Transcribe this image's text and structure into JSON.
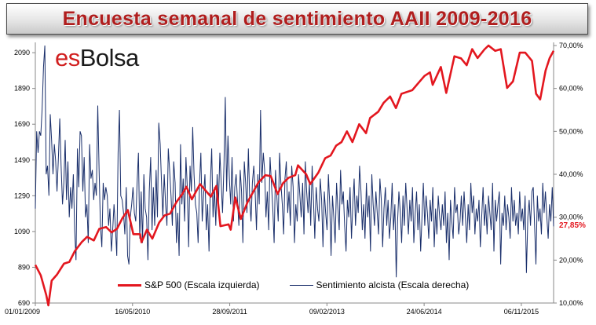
{
  "title": "Encuesta  semanal  de sentimiento AAII 2009-2016",
  "logo": {
    "prefix": "es",
    "suffix": "Bolsa"
  },
  "last_value_label": "27,85%",
  "chart_data": {
    "type": "line",
    "title": "Encuesta  semanal  de sentimiento AAII 2009-2016",
    "x_tick_labels": [
      "01/01/2009",
      "16/05/2010",
      "28/09/2011",
      "09/02/2013",
      "24/06/2014",
      "06/11/2015"
    ],
    "x_range": [
      "2009-01-01",
      "2016-04-20"
    ],
    "y_left": {
      "ticks": [
        "690",
        "890",
        "1090",
        "1290",
        "1490",
        "1690",
        "1890",
        "2090"
      ],
      "range": [
        690,
        2130
      ]
    },
    "y_right": {
      "ticks": [
        "10,00%",
        "20,00%",
        "30,00%",
        "40,00%",
        "50,00%",
        "60,00%",
        "70,00%"
      ],
      "range": [
        10,
        70
      ]
    },
    "grid": false,
    "legend": "bottom",
    "colors": {
      "sp500": "#e3171f",
      "sentiment": "#1a2f6b"
    },
    "series": [
      {
        "name": "S&P 500 (Escala izquierda)",
        "axis": "left",
        "x": [
          "2009-01-01",
          "2009-01-29",
          "2009-02-26",
          "2009-03-09",
          "2009-03-26",
          "2009-04-23",
          "2009-05-28",
          "2009-06-25",
          "2009-07-23",
          "2009-08-27",
          "2009-09-24",
          "2009-10-29",
          "2009-11-26",
          "2009-12-31",
          "2010-01-28",
          "2010-02-25",
          "2010-03-25",
          "2010-04-22",
          "2010-05-20",
          "2010-06-24",
          "2010-07-01",
          "2010-07-29",
          "2010-08-26",
          "2010-09-30",
          "2010-10-28",
          "2010-11-25",
          "2010-12-30",
          "2011-01-27",
          "2011-02-17",
          "2011-03-17",
          "2011-04-28",
          "2011-05-26",
          "2011-06-23",
          "2011-07-21",
          "2011-08-11",
          "2011-09-22",
          "2011-10-03",
          "2011-10-27",
          "2011-11-24",
          "2011-12-29",
          "2012-01-26",
          "2012-02-23",
          "2012-03-29",
          "2012-04-26",
          "2012-05-31",
          "2012-06-28",
          "2012-07-26",
          "2012-08-30",
          "2012-09-13",
          "2012-10-25",
          "2012-11-15",
          "2012-12-27",
          "2013-01-31",
          "2013-02-28",
          "2013-03-28",
          "2013-04-25",
          "2013-05-23",
          "2013-06-20",
          "2013-07-25",
          "2013-08-29",
          "2013-09-19",
          "2013-10-31",
          "2013-11-28",
          "2013-12-31",
          "2014-01-30",
          "2014-02-27",
          "2014-03-27",
          "2014-04-24",
          "2014-05-29",
          "2014-06-26",
          "2014-07-24",
          "2014-08-07",
          "2014-09-18",
          "2014-10-16",
          "2014-11-27",
          "2014-12-31",
          "2015-01-29",
          "2015-02-26",
          "2015-03-26",
          "2015-04-30",
          "2015-05-21",
          "2015-06-25",
          "2015-07-23",
          "2015-08-25",
          "2015-09-24",
          "2015-10-29",
          "2015-11-26",
          "2015-12-31",
          "2016-01-21",
          "2016-02-11",
          "2016-03-10",
          "2016-03-31",
          "2016-04-20"
        ],
        "values": [
          903,
          845,
          735,
          677,
          815,
          850,
          910,
          920,
          980,
          1030,
          1060,
          1040,
          1105,
          1115,
          1085,
          1105,
          1165,
          1210,
          1075,
          1075,
          1030,
          1100,
          1050,
          1140,
          1180,
          1190,
          1258,
          1300,
          1340,
          1270,
          1355,
          1320,
          1285,
          1345,
          1120,
          1130,
          1100,
          1280,
          1160,
          1255,
          1310,
          1365,
          1405,
          1400,
          1300,
          1360,
          1390,
          1405,
          1460,
          1410,
          1355,
          1420,
          1500,
          1515,
          1570,
          1590,
          1650,
          1590,
          1690,
          1640,
          1725,
          1760,
          1810,
          1845,
          1780,
          1860,
          1870,
          1880,
          1925,
          1960,
          1980,
          1910,
          2010,
          1865,
          2070,
          2058,
          2020,
          2110,
          2060,
          2108,
          2130,
          2100,
          2110,
          1893,
          1930,
          2090,
          2090,
          2044,
          1860,
          1829,
          1990,
          2060,
          2100
        ]
      },
      {
        "name": "Sentimiento alcista (Escala derecha)",
        "axis": "right",
        "values": [
          32,
          50,
          45,
          50,
          49,
          55,
          65,
          70,
          40,
          42,
          35,
          54,
          48,
          40,
          47,
          43,
          36,
          44,
          53,
          42,
          33,
          38,
          48,
          34,
          43,
          30,
          37,
          32,
          40,
          27,
          20,
          46,
          37,
          50,
          49,
          36,
          44,
          30,
          33,
          24,
          47,
          39,
          41,
          34,
          38,
          35,
          56,
          41,
          28,
          23,
          38,
          34,
          37,
          35,
          28,
          32,
          22,
          27,
          33,
          28,
          21,
          45,
          55,
          35,
          34,
          31,
          26,
          37,
          21,
          19,
          30,
          33,
          37,
          31,
          29,
          38,
          45,
          25,
          36,
          24,
          40,
          32,
          30,
          20,
          36,
          44,
          27,
          37,
          28,
          41,
          30,
          52,
          47,
          38,
          30,
          40,
          33,
          28,
          46,
          41,
          35,
          28,
          43,
          38,
          24,
          31,
          21,
          47,
          33,
          39,
          29,
          44,
          37,
          23,
          42,
          36,
          51,
          40,
          33,
          31,
          24,
          38,
          45,
          29,
          35,
          40,
          27,
          33,
          22,
          38,
          46,
          30,
          37,
          28,
          40,
          33,
          45,
          38,
          31,
          42,
          58,
          36,
          49,
          39,
          33,
          44,
          29,
          37,
          40,
          34,
          28,
          41,
          36,
          24,
          43,
          38,
          31,
          46,
          34,
          29,
          38,
          42,
          36,
          27,
          40,
          33,
          55,
          38,
          45,
          41,
          30,
          36,
          27,
          44,
          38,
          32,
          24,
          41,
          35,
          29,
          45,
          38,
          33,
          26,
          39,
          43,
          31,
          36,
          28,
          42,
          37,
          24,
          33,
          29,
          40,
          35,
          30,
          38,
          26,
          43,
          36,
          31,
          38,
          28,
          42,
          34,
          25,
          37,
          32,
          29,
          39,
          34,
          23,
          36,
          31,
          27,
          40,
          33,
          21,
          35,
          30,
          24,
          38,
          32,
          27,
          41,
          33,
          36,
          28,
          22,
          34,
          30,
          37,
          25,
          33,
          39,
          28,
          35,
          31,
          42,
          36,
          27,
          33,
          25,
          38,
          30,
          35,
          22,
          40,
          33,
          28,
          36,
          31,
          26,
          39,
          34,
          23,
          32,
          37,
          28,
          34,
          25,
          30,
          38,
          27,
          33,
          16,
          29,
          36,
          31,
          24,
          35,
          28,
          38,
          32,
          26,
          34,
          29,
          37,
          24,
          31,
          36,
          27,
          33,
          22,
          30,
          38,
          28,
          35,
          31,
          25,
          34,
          29,
          37,
          23,
          32,
          26,
          35,
          30,
          27,
          33,
          28,
          36,
          24,
          31,
          20,
          34,
          29,
          25,
          37,
          31,
          33,
          26,
          29,
          35,
          28,
          36,
          30,
          24,
          33,
          27,
          38,
          31,
          35,
          26,
          32,
          29,
          34,
          23,
          30,
          37,
          28,
          33,
          26,
          35,
          31,
          27,
          38,
          22,
          34,
          29,
          33,
          36,
          19,
          31,
          28,
          35,
          27,
          33,
          30,
          25,
          37,
          29,
          34,
          28,
          31,
          26,
          36,
          29,
          32,
          27,
          35,
          17,
          30,
          34,
          28,
          36,
          37,
          28,
          19,
          35,
          29,
          32,
          26,
          38,
          31,
          36,
          30,
          25,
          33,
          29,
          37,
          27.85
        ]
      }
    ]
  }
}
